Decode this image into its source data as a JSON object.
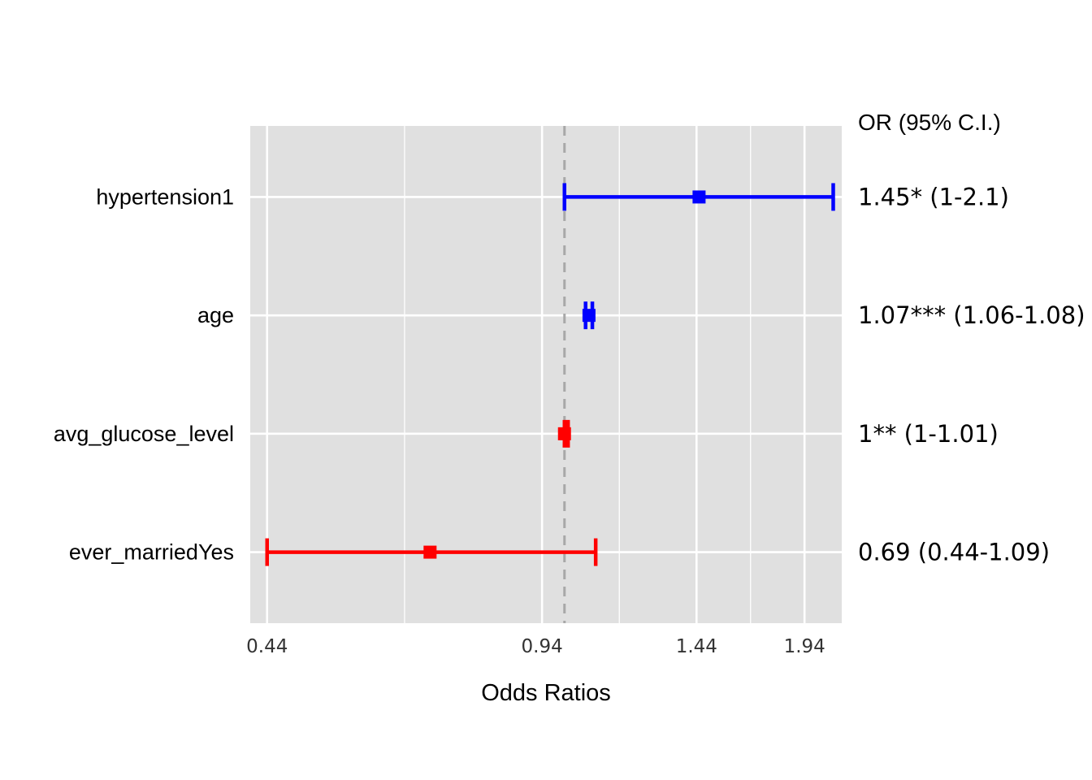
{
  "chart_data": {
    "type": "forest",
    "xlabel": "Odds Ratios",
    "x_scale": "log",
    "xlim": [
      0.42,
      2.15
    ],
    "x_ticks": [
      0.44,
      0.94,
      1.44,
      1.94
    ],
    "reference_line": 1,
    "grid": true,
    "annotation_header": "OR (95% C.I.)",
    "colors": {
      "positive": "#0000ff",
      "negative": "#ff0000",
      "panel": "#e0e0e0",
      "grid": "#ffffff",
      "reference": "#a8a8a8"
    },
    "rows": [
      {
        "term": "hypertension1",
        "or": 1.45,
        "lower": 1.0,
        "upper": 2.1,
        "label": "1.45* (1-2.1)",
        "direction": "positive"
      },
      {
        "term": "age",
        "or": 1.07,
        "lower": 1.06,
        "upper": 1.08,
        "label": "1.07*** (1.06-1.08)",
        "direction": "positive"
      },
      {
        "term": "avg_glucose_level",
        "or": 1.0,
        "lower": 1.0,
        "upper": 1.01,
        "label": "1** (1-1.01)",
        "direction": "negative"
      },
      {
        "term": "ever_marriedYes",
        "or": 0.69,
        "lower": 0.44,
        "upper": 1.09,
        "label": "0.69 (0.44-1.09)",
        "direction": "negative"
      }
    ]
  }
}
